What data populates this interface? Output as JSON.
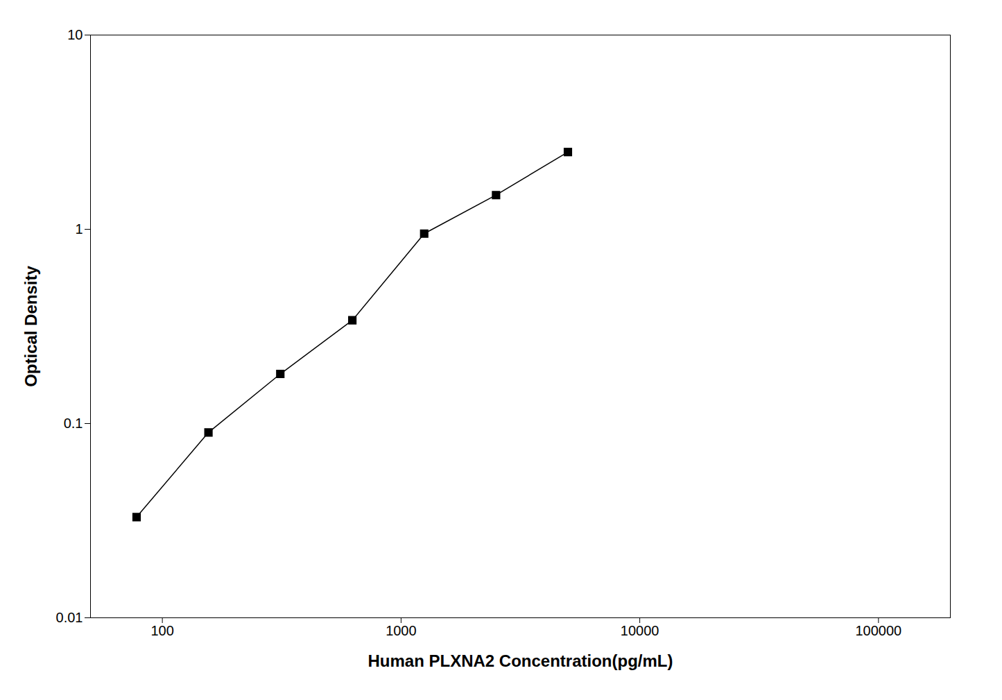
{
  "chart_data": {
    "type": "line",
    "x": [
      78,
      156,
      312,
      625,
      1250,
      2500,
      5000
    ],
    "values": [
      0.033,
      0.09,
      0.18,
      0.34,
      0.95,
      1.5,
      2.5
    ],
    "xlabel": "Human PLXNA2 Concentration(pg/mL)",
    "ylabel": "Optical Density",
    "xlim": [
      50,
      200000
    ],
    "ylim": [
      0.01,
      10
    ],
    "xticks": [
      100,
      1000,
      10000,
      100000
    ],
    "yticks": [
      0.01,
      0.1,
      1,
      10
    ],
    "log": true,
    "color": "#000000",
    "marker": "square"
  }
}
